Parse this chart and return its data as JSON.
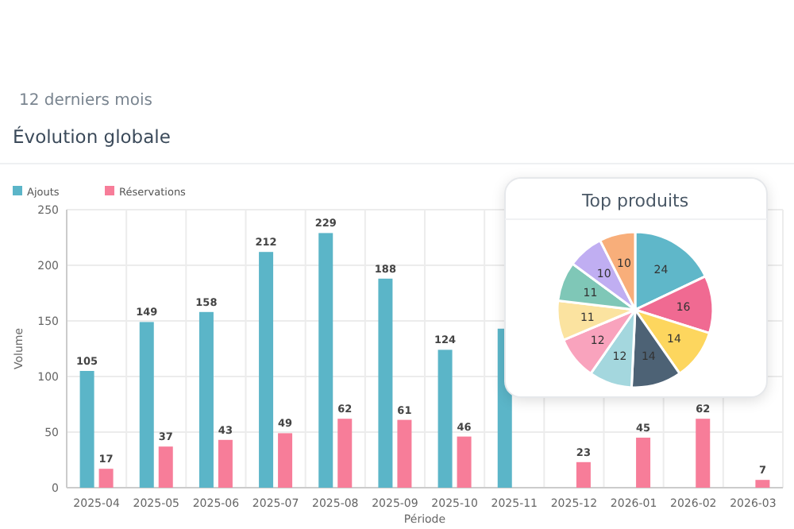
{
  "chart_data": [
    {
      "type": "bar",
      "subtitle": "12 derniers mois",
      "title": "Évolution globale",
      "xlabel": "Période",
      "ylabel": "Volume",
      "categories": [
        "2025-04",
        "2025-05",
        "2025-06",
        "2025-07",
        "2025-08",
        "2025-09",
        "2025-10",
        "2025-11",
        "2025-12",
        "2026-01",
        "2026-02",
        "2026-03"
      ],
      "series": [
        {
          "name": "Ajouts",
          "color": "#5bb5c8",
          "values": [
            105,
            149,
            158,
            212,
            229,
            188,
            124,
            143,
            null,
            null,
            null,
            null
          ],
          "value_labels": [
            "105",
            "149",
            "158",
            "212",
            "229",
            "188",
            "124",
            null,
            null,
            null,
            null,
            null
          ]
        },
        {
          "name": "Réservations",
          "color": "#f77d99",
          "values": [
            17,
            37,
            43,
            49,
            62,
            61,
            46,
            null,
            23,
            45,
            62,
            7
          ],
          "value_labels": [
            "17",
            "37",
            "43",
            "49",
            "62",
            "61",
            "46",
            null,
            "23",
            "45",
            "62",
            "7"
          ]
        }
      ],
      "ylim": [
        0,
        250
      ],
      "yticks": [
        0,
        50,
        100,
        150,
        200,
        250
      ],
      "grid": true,
      "legend": "top left"
    },
    {
      "type": "pie",
      "title": "Top produits",
      "categories": [
        null,
        null,
        null,
        null,
        null,
        null,
        null,
        null,
        null,
        null
      ],
      "values": [
        24,
        16,
        14,
        14,
        12,
        12,
        11,
        11,
        10,
        10
      ],
      "colors": [
        "#5fb7c9",
        "#f06a92",
        "#fdd65e",
        "#4d6275",
        "#a4d7de",
        "#f9a3bd",
        "#fbe3a0",
        "#7fc7b7",
        "#c0aef2",
        "#f8ae7a"
      ],
      "data_labels": true
    }
  ]
}
